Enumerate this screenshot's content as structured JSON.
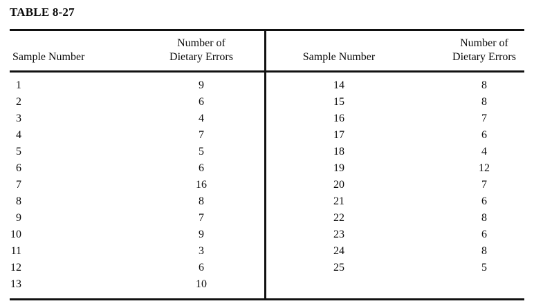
{
  "title": "TABLE 8-27",
  "headers": {
    "sample": "Sample Number",
    "errors_line1": "Number of",
    "errors_line2": "Dietary Errors"
  },
  "rows_left": [
    {
      "sample": "1",
      "errors": "9"
    },
    {
      "sample": "2",
      "errors": "6"
    },
    {
      "sample": "3",
      "errors": "4"
    },
    {
      "sample": "4",
      "errors": "7"
    },
    {
      "sample": "5",
      "errors": "5"
    },
    {
      "sample": "6",
      "errors": "6"
    },
    {
      "sample": "7",
      "errors": "16"
    },
    {
      "sample": "8",
      "errors": "8"
    },
    {
      "sample": "9",
      "errors": "7"
    },
    {
      "sample": "10",
      "errors": "9"
    },
    {
      "sample": "11",
      "errors": "3"
    },
    {
      "sample": "12",
      "errors": "6"
    },
    {
      "sample": "13",
      "errors": "10"
    }
  ],
  "rows_right": [
    {
      "sample": "14",
      "errors": "8"
    },
    {
      "sample": "15",
      "errors": "8"
    },
    {
      "sample": "16",
      "errors": "7"
    },
    {
      "sample": "17",
      "errors": "6"
    },
    {
      "sample": "18",
      "errors": "4"
    },
    {
      "sample": "19",
      "errors": "12"
    },
    {
      "sample": "20",
      "errors": "7"
    },
    {
      "sample": "21",
      "errors": "6"
    },
    {
      "sample": "22",
      "errors": "8"
    },
    {
      "sample": "23",
      "errors": "6"
    },
    {
      "sample": "24",
      "errors": "8"
    },
    {
      "sample": "25",
      "errors": "5"
    }
  ]
}
